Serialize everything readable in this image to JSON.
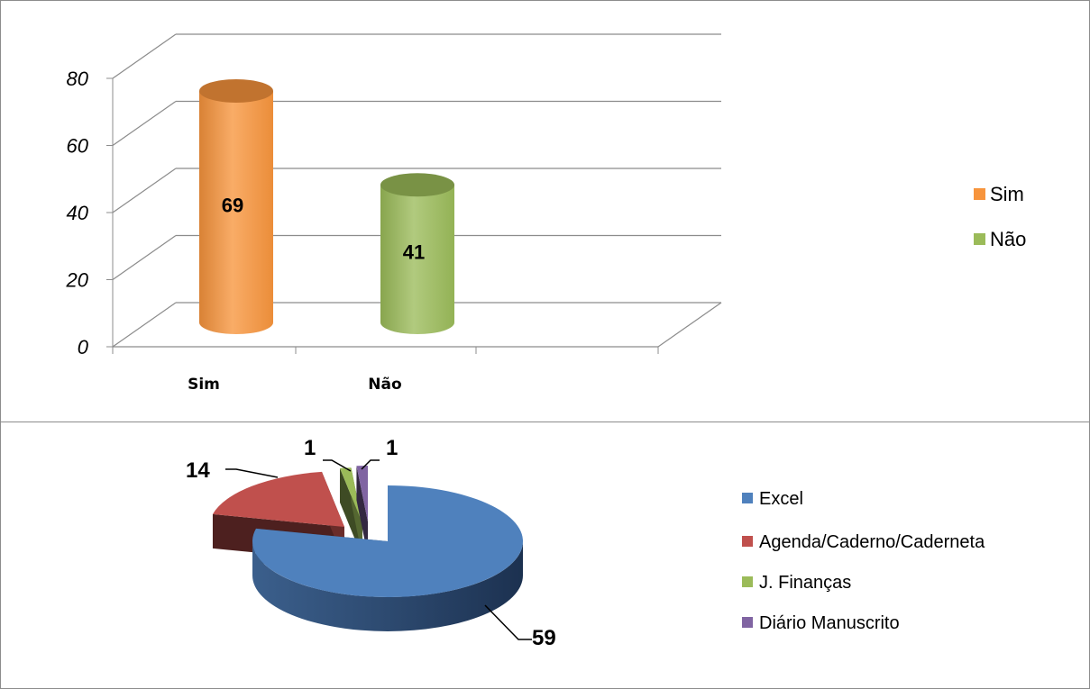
{
  "chart_data": [
    {
      "type": "bar",
      "categories": [
        "Sim",
        "Não"
      ],
      "values": [
        69,
        41
      ],
      "colors": [
        "#f7943c",
        "#9bbb59"
      ],
      "ylim": [
        0,
        80
      ],
      "yticks": [
        "0",
        "20",
        "40",
        "60",
        "80"
      ],
      "grid": true,
      "legend_position": "right",
      "legend": [
        "Sim",
        "Não"
      ],
      "data_labels": [
        "69",
        "41"
      ]
    },
    {
      "type": "pie",
      "categories": [
        "Excel",
        "Agenda/Caderno/Caderneta",
        "J. Finanças",
        "Diário Manuscrito"
      ],
      "values": [
        59,
        14,
        1,
        1
      ],
      "colors": [
        "#4f81bd",
        "#c0504d",
        "#9bbb59",
        "#8064a2"
      ],
      "legend_position": "right",
      "data_labels": [
        "59",
        "14",
        "1",
        "1"
      ]
    }
  ]
}
